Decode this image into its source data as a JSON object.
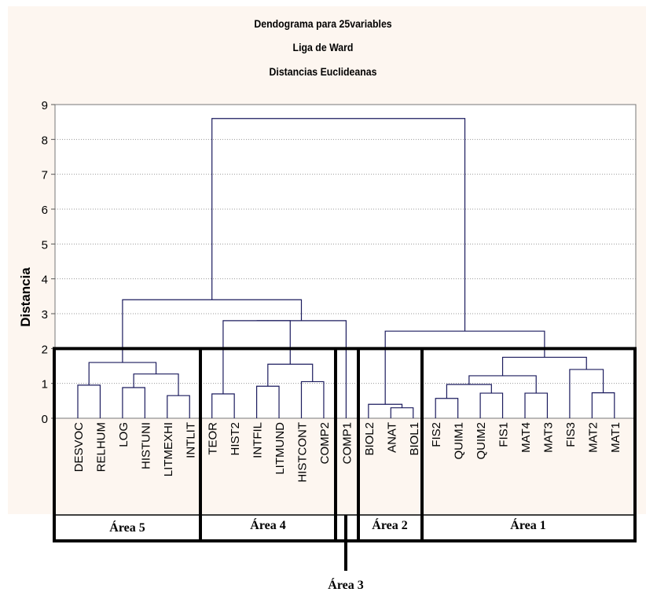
{
  "chart_data": {
    "type": "dendrogram",
    "title_lines": [
      "Dendograma para 25variables",
      "Liga de Ward",
      "Distancias Euclideanas"
    ],
    "ylabel": "Distancia",
    "ylim": [
      0,
      9
    ],
    "yticks": [
      0,
      1,
      2,
      3,
      4,
      5,
      6,
      7,
      8,
      9
    ],
    "grid": "horizontal dotted",
    "cut_height": 2,
    "leaves": [
      "DESVOC",
      "RELHUM",
      "LOG",
      "HISTUNI",
      "LITMEXHI",
      "INTLIT",
      "TEOR",
      "HIST2",
      "INTFIL",
      "LITMUND",
      "HISTCONT",
      "COMP2",
      "COMP1",
      "BIOL2",
      "ANAT",
      "BIOL1",
      "FIS2",
      "QUIM1",
      "QUIM2",
      "FIS1",
      "MAT4",
      "MAT3",
      "FIS3",
      "MAT2",
      "MAT1"
    ],
    "merges": [
      {
        "left": 0,
        "right": 1,
        "height": 0.95
      },
      {
        "left": 2,
        "right": 3,
        "height": 0.88
      },
      {
        "left": 4,
        "right": 5,
        "height": 0.65
      },
      {
        "left": 101,
        "right": 102,
        "height": 1.27
      },
      {
        "left": 100,
        "right": 103,
        "height": 1.6
      },
      {
        "left": 6,
        "right": 7,
        "height": 0.7
      },
      {
        "left": 8,
        "right": 9,
        "height": 0.92
      },
      {
        "left": 10,
        "right": 11,
        "height": 1.05
      },
      {
        "left": 106,
        "right": 107,
        "height": 1.55
      },
      {
        "left": 105,
        "right": 108,
        "height": 2.8
      },
      {
        "left": 109,
        "right": 12,
        "height": 2.8
      },
      {
        "left": 104,
        "right": 110,
        "height": 3.4
      },
      {
        "left": 14,
        "right": 15,
        "height": 0.3
      },
      {
        "left": 13,
        "right": 112,
        "height": 0.4
      },
      {
        "left": 16,
        "right": 17,
        "height": 0.57
      },
      {
        "left": 18,
        "right": 19,
        "height": 0.72
      },
      {
        "left": 114,
        "right": 115,
        "height": 0.97
      },
      {
        "left": 20,
        "right": 21,
        "height": 0.72
      },
      {
        "left": 116,
        "right": 117,
        "height": 1.22
      },
      {
        "left": 23,
        "right": 24,
        "height": 0.73
      },
      {
        "left": 22,
        "right": 119,
        "height": 1.4
      },
      {
        "left": 118,
        "right": 120,
        "height": 1.75
      },
      {
        "left": 113,
        "right": 121,
        "height": 2.5
      },
      {
        "left": 111,
        "right": 122,
        "height": 8.6
      }
    ],
    "groups": [
      {
        "label": "Área 5",
        "from": 0,
        "to": 5
      },
      {
        "label": "Área 4",
        "from": 6,
        "to": 11
      },
      {
        "label": "Área 3",
        "from": 12,
        "to": 12
      },
      {
        "label": "Área 2",
        "from": 13,
        "to": 15
      },
      {
        "label": "Área 1",
        "from": 16,
        "to": 24
      }
    ]
  },
  "colors": {
    "tree": "#1b1b5e",
    "grid": "#9a9a9a",
    "box": "#000000",
    "background": "#fdf6f0"
  }
}
